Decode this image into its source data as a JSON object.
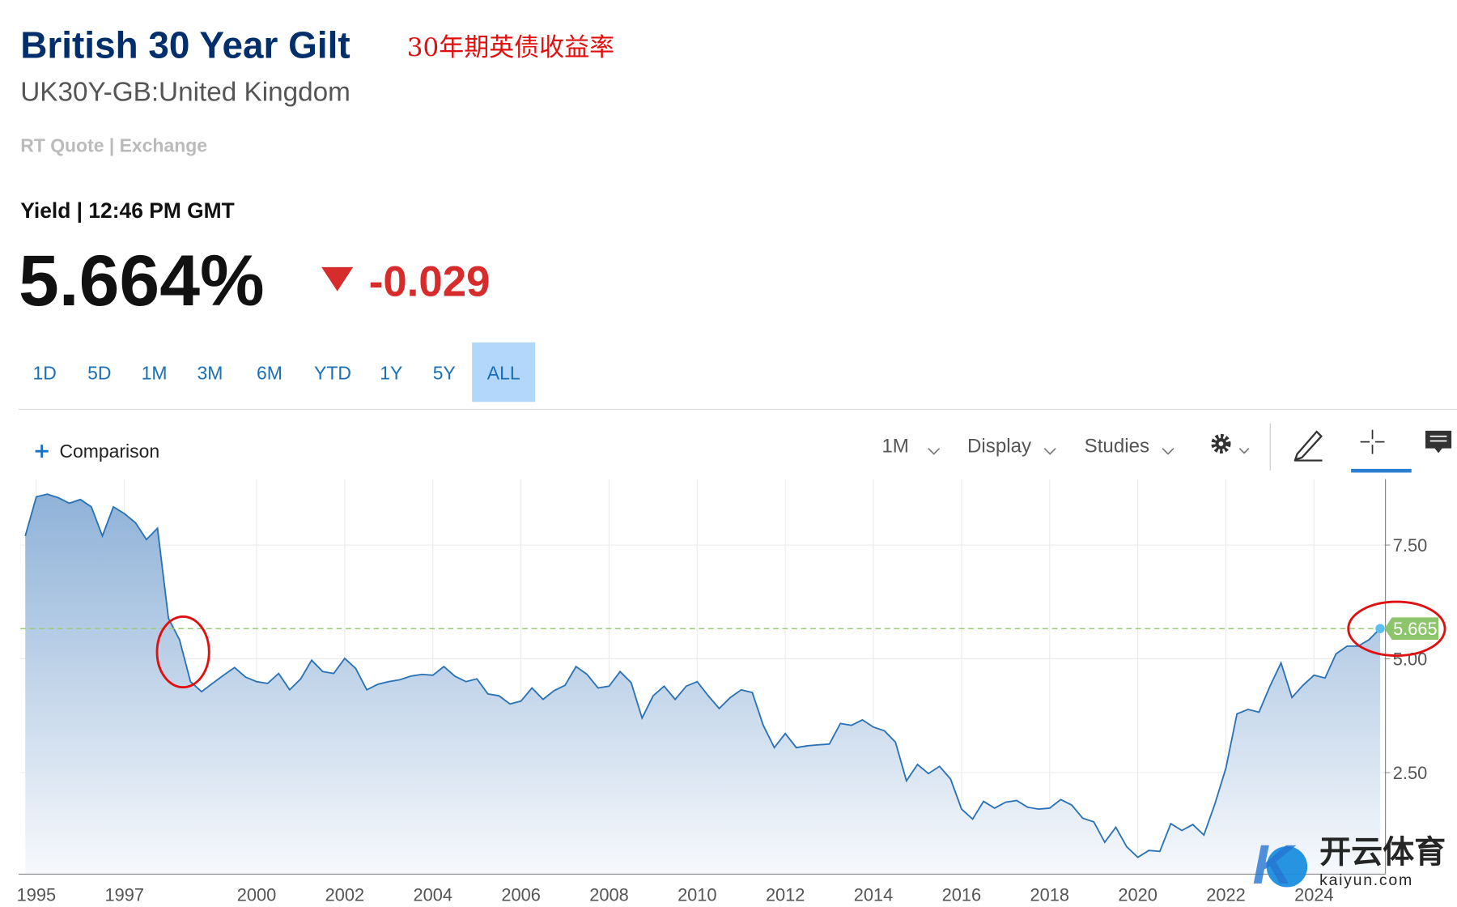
{
  "header": {
    "title": "British 30 Year Gilt",
    "annotation": "30年期英债收益率",
    "symbol": "UK30Y-GB:United Kingdom",
    "quote_source": "RT Quote | Exchange",
    "quote_time": "Yield | 12:46 PM GMT",
    "price": "5.664%",
    "change": "-0.029"
  },
  "ranges": {
    "items": [
      "1D",
      "5D",
      "1M",
      "3M",
      "6M",
      "YTD",
      "1Y",
      "5Y",
      "ALL"
    ],
    "active": "ALL"
  },
  "toolbar": {
    "comparison": "Comparison",
    "interval": "1M",
    "display": "Display",
    "studies": "Studies"
  },
  "watermark": {
    "name": "开云体育",
    "site": "kaiyun.com"
  },
  "chart_data": {
    "type": "area",
    "color": "#2a72b5",
    "x": [
      1994.75,
      1995,
      1995.25,
      1995.5,
      1995.75,
      1996,
      1996.25,
      1996.5,
      1996.75,
      1997,
      1997.25,
      1997.5,
      1997.75,
      1998,
      1998.25,
      1998.5,
      1998.75,
      1999,
      1999.25,
      1999.5,
      1999.75,
      2000,
      2000.25,
      2000.5,
      2000.75,
      2001,
      2001.25,
      2001.5,
      2001.75,
      2002,
      2002.25,
      2002.5,
      2002.75,
      2003,
      2003.25,
      2003.5,
      2003.75,
      2004,
      2004.25,
      2004.5,
      2004.75,
      2005,
      2005.25,
      2005.5,
      2005.75,
      2006,
      2006.25,
      2006.5,
      2006.75,
      2007,
      2007.25,
      2007.5,
      2007.75,
      2008,
      2008.25,
      2008.5,
      2008.75,
      2009,
      2009.25,
      2009.5,
      2009.75,
      2010,
      2010.25,
      2010.5,
      2010.75,
      2011,
      2011.25,
      2011.5,
      2011.75,
      2012,
      2012.25,
      2012.5,
      2012.75,
      2013,
      2013.25,
      2013.5,
      2013.75,
      2014,
      2014.25,
      2014.5,
      2014.75,
      2015,
      2015.25,
      2015.5,
      2015.75,
      2016,
      2016.25,
      2016.5,
      2016.75,
      2017,
      2017.25,
      2017.5,
      2017.75,
      2018,
      2018.25,
      2018.5,
      2018.75,
      2019,
      2019.25,
      2019.5,
      2019.75,
      2020,
      2020.25,
      2020.5,
      2020.75,
      2021,
      2021.25,
      2021.5,
      2021.75,
      2022,
      2022.25,
      2022.5,
      2022.75,
      2023,
      2023.25,
      2023.5,
      2023.75,
      2024,
      2024.25,
      2024.5,
      2024.75,
      2025,
      2025.25,
      2025.5
    ],
    "values": [
      7.7,
      8.56,
      8.62,
      8.54,
      8.42,
      8.5,
      8.34,
      7.7,
      8.34,
      8.19,
      7.99,
      7.62,
      7.87,
      5.89,
      5.42,
      4.5,
      4.28,
      4.46,
      4.64,
      4.81,
      4.6,
      4.5,
      4.46,
      4.68,
      4.32,
      4.56,
      4.97,
      4.72,
      4.68,
      5.01,
      4.79,
      4.32,
      4.44,
      4.5,
      4.54,
      4.62,
      4.66,
      4.64,
      4.83,
      4.62,
      4.5,
      4.56,
      4.23,
      4.19,
      4.01,
      4.07,
      4.36,
      4.11,
      4.3,
      4.42,
      4.83,
      4.66,
      4.36,
      4.4,
      4.72,
      4.48,
      3.7,
      4.19,
      4.4,
      4.11,
      4.4,
      4.5,
      4.19,
      3.91,
      4.15,
      4.32,
      4.26,
      3.54,
      3.05,
      3.36,
      3.05,
      3.09,
      3.11,
      3.13,
      3.58,
      3.54,
      3.66,
      3.5,
      3.42,
      3.17,
      2.32,
      2.68,
      2.48,
      2.64,
      2.36,
      1.7,
      1.48,
      1.87,
      1.72,
      1.85,
      1.89,
      1.74,
      1.7,
      1.72,
      1.91,
      1.79,
      1.5,
      1.42,
      0.97,
      1.3,
      0.87,
      0.64,
      0.79,
      0.77,
      1.38,
      1.23,
      1.36,
      1.13,
      1.81,
      2.6,
      3.79,
      3.89,
      3.83,
      4.4,
      4.91,
      4.15,
      4.42,
      4.64,
      4.58,
      5.11,
      5.28,
      5.28,
      5.42,
      5.665
    ],
    "last_value": 5.665,
    "xlim": [
      1994.64,
      2025.6
    ],
    "xticks": [
      1995,
      1997,
      2000,
      2002,
      2004,
      2006,
      2008,
      2010,
      2012,
      2014,
      2016,
      2018,
      2020,
      2022,
      2024
    ],
    "ylim": [
      0.27,
      8.95
    ],
    "yticks": [
      {
        "value": 2.5,
        "label": "2.50"
      },
      {
        "value": 5,
        "label": "5.00"
      },
      {
        "value": 7.5,
        "label": "7.50"
      }
    ],
    "grid": true
  }
}
